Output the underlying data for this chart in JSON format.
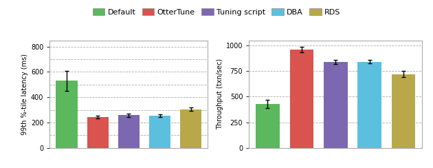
{
  "legend_labels": [
    "Default",
    "OtterTune",
    "Tuning script",
    "DBA",
    "RDS"
  ],
  "colors": [
    "#5cb85c",
    "#d9534f",
    "#7b68b0",
    "#5bc0de",
    "#b8a84a"
  ],
  "latency": {
    "ylabel": "99th %-tile latency (ms)",
    "values": [
      530,
      245,
      258,
      255,
      305
    ],
    "errors": [
      80,
      12,
      15,
      12,
      12
    ],
    "ylim": [
      0,
      850
    ],
    "yticks": [
      0,
      200,
      400,
      600,
      800
    ],
    "grid_yticks": [
      100,
      200,
      300,
      400,
      500,
      600,
      700,
      800
    ]
  },
  "throughput": {
    "ylabel": "Throughput (txn/sec)",
    "values": [
      430,
      960,
      840,
      840,
      720
    ],
    "errors": [
      40,
      28,
      22,
      18,
      28
    ],
    "ylim": [
      0,
      1050
    ],
    "yticks": [
      0,
      250,
      500,
      750,
      1000
    ],
    "grid_yticks": [
      250,
      500,
      750,
      1000
    ]
  },
  "bar_width": 0.7
}
